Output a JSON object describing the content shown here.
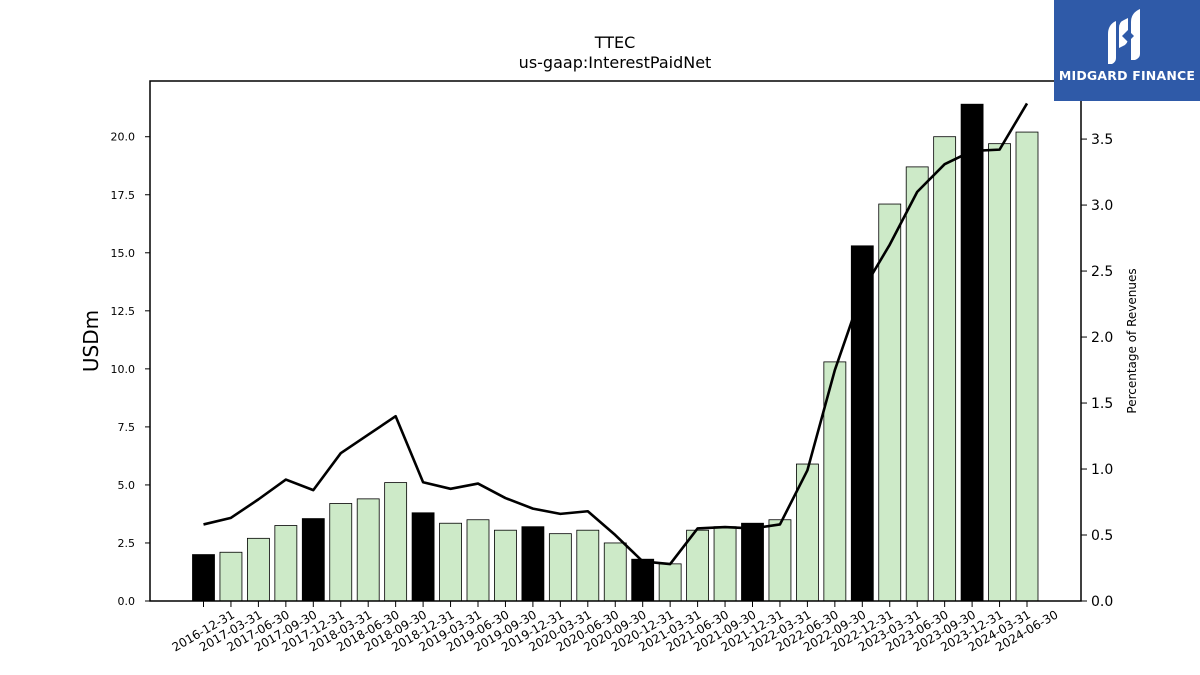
{
  "brand": {
    "name": "MIDGARD FINANCE",
    "bg_color": "#2f5aa8"
  },
  "chart_data": {
    "type": "bar",
    "title": "TTEC",
    "subtitle": "us-gaap:InterestPaidNet",
    "ylabel": "USDm",
    "y2label": "Percentage of Revenues",
    "ylim": [
      0,
      22.4
    ],
    "y2lim": [
      0,
      3.94
    ],
    "yticks": [
      0.0,
      2.5,
      5.0,
      7.5,
      10.0,
      12.5,
      15.0,
      17.5,
      20.0
    ],
    "y2ticks": [
      0.0,
      0.5,
      1.0,
      1.5,
      2.0,
      2.5,
      3.0,
      3.5
    ],
    "categories": [
      "2016-12-31",
      "2017-03-31",
      "2017-06-30",
      "2017-09-30",
      "2017-12-31",
      "2018-03-31",
      "2018-06-30",
      "2018-09-30",
      "2018-12-31",
      "2019-03-31",
      "2019-06-30",
      "2019-09-30",
      "2019-12-31",
      "2020-03-31",
      "2020-06-30",
      "2020-09-30",
      "2020-12-31",
      "2021-03-31",
      "2021-06-30",
      "2021-09-30",
      "2021-12-31",
      "2022-03-31",
      "2022-06-30",
      "2022-09-30",
      "2022-12-31",
      "2023-03-31",
      "2023-06-30",
      "2023-09-30",
      "2023-12-31",
      "2024-03-31",
      "2024-06-30"
    ],
    "series": [
      {
        "type": "bar",
        "values": [
          2.0,
          2.1,
          2.7,
          3.25,
          3.55,
          4.2,
          4.4,
          5.1,
          3.8,
          3.35,
          3.5,
          3.05,
          3.2,
          2.9,
          3.05,
          2.5,
          1.8,
          1.6,
          3.05,
          3.2,
          3.35,
          3.5,
          5.9,
          10.3,
          15.3,
          17.1,
          18.7,
          20.0,
          21.4,
          19.7,
          20.2
        ],
        "year_end": [
          true,
          false,
          false,
          false,
          true,
          false,
          false,
          false,
          true,
          false,
          false,
          false,
          true,
          false,
          false,
          false,
          true,
          false,
          false,
          false,
          true,
          false,
          false,
          false,
          true,
          false,
          false,
          false,
          true,
          false,
          false
        ]
      },
      {
        "type": "line",
        "axis": "right",
        "values": [
          0.58,
          0.63,
          0.77,
          0.92,
          0.84,
          1.12,
          1.26,
          1.4,
          0.9,
          0.85,
          0.89,
          0.78,
          0.7,
          0.66,
          0.68,
          0.5,
          0.3,
          0.28,
          0.55,
          0.56,
          0.55,
          0.58,
          0.99,
          1.75,
          2.35,
          2.7,
          3.1,
          3.31,
          3.41,
          3.42,
          3.77
        ]
      }
    ],
    "colors": {
      "year_end_bar": "#000000",
      "bar": "#cdeac8",
      "line": "#000000"
    },
    "grid": false,
    "legend": "none"
  }
}
